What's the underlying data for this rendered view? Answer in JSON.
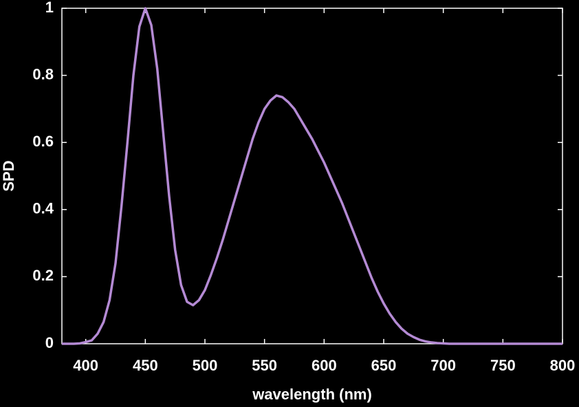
{
  "chart_data": {
    "type": "line",
    "xlabel": "wavelength (nm)",
    "ylabel": "SPD",
    "x": [
      380,
      385,
      390,
      395,
      400,
      405,
      410,
      415,
      420,
      425,
      430,
      435,
      440,
      445,
      450,
      455,
      460,
      465,
      470,
      475,
      480,
      485,
      490,
      495,
      500,
      505,
      510,
      515,
      520,
      525,
      530,
      535,
      540,
      545,
      550,
      555,
      560,
      565,
      570,
      575,
      580,
      585,
      590,
      595,
      600,
      605,
      610,
      615,
      620,
      625,
      630,
      635,
      640,
      645,
      650,
      655,
      660,
      665,
      670,
      675,
      680,
      685,
      690,
      695,
      700,
      705,
      710,
      715,
      720,
      725,
      730,
      735,
      740,
      745,
      750,
      755,
      760,
      765,
      770,
      775,
      780,
      785,
      790,
      795,
      800
    ],
    "values": [
      0,
      0,
      0,
      0.001,
      0.005,
      0.01,
      0.03,
      0.065,
      0.13,
      0.24,
      0.41,
      0.6,
      0.8,
      0.945,
      1.0,
      0.95,
      0.82,
      0.63,
      0.44,
      0.28,
      0.175,
      0.125,
      0.115,
      0.13,
      0.16,
      0.205,
      0.255,
      0.31,
      0.37,
      0.43,
      0.49,
      0.55,
      0.61,
      0.66,
      0.7,
      0.725,
      0.74,
      0.735,
      0.72,
      0.7,
      0.67,
      0.64,
      0.61,
      0.575,
      0.54,
      0.5,
      0.46,
      0.42,
      0.375,
      0.33,
      0.285,
      0.24,
      0.195,
      0.155,
      0.12,
      0.09,
      0.065,
      0.045,
      0.03,
      0.02,
      0.012,
      0.007,
      0.004,
      0.002,
      0.001,
      0,
      0,
      0,
      0,
      0,
      0,
      0,
      0,
      0,
      0,
      0,
      0,
      0,
      0,
      0,
      0,
      0,
      0,
      0,
      0
    ],
    "color": "#b48ad4",
    "xlim": [
      380,
      800
    ],
    "xticks": [
      400,
      450,
      500,
      550,
      600,
      650,
      700,
      750,
      800
    ],
    "ylim": [
      0,
      1
    ],
    "yticks": [
      0,
      0.2,
      0.4,
      0.6,
      0.8,
      1
    ],
    "grid": false
  }
}
